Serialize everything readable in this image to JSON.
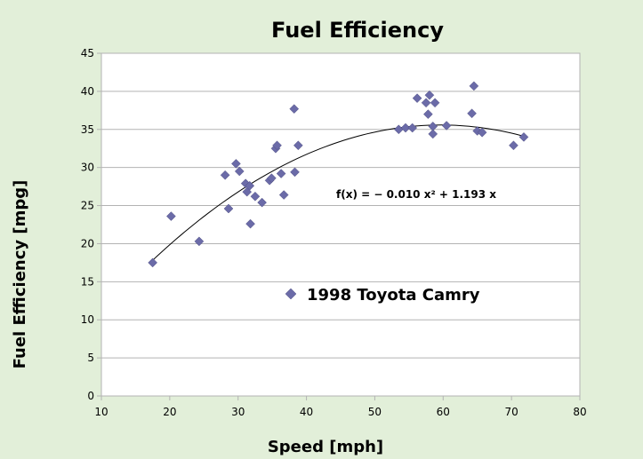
{
  "chart_data": {
    "type": "scatter",
    "title": "Fuel Efficiency",
    "xlabel": "Speed [mph]",
    "ylabel": "Fuel Efficiency [mpg]",
    "xlim": [
      10,
      80
    ],
    "ylim": [
      0,
      45
    ],
    "xticks": [
      "10",
      "20",
      "30",
      "40",
      "50",
      "60",
      "70",
      "80"
    ],
    "yticks": [
      "0",
      "5",
      "10",
      "15",
      "20",
      "25",
      "30",
      "35",
      "40",
      "45"
    ],
    "grid": "horizontal",
    "legend_position": "lower-center",
    "marker_color": "#6b6ba8",
    "series": [
      {
        "name": "1998 Toyota Camry",
        "x": [
          17.5,
          20.2,
          24.3,
          28.1,
          28.6,
          29.7,
          30.2,
          31.1,
          31.3,
          31.7,
          31.8,
          32.5,
          33.5,
          34.6,
          34.9,
          35.5,
          35.7,
          36.3,
          36.7,
          38.2,
          38.3,
          38.8,
          53.5,
          54.5,
          55.5,
          56.2,
          57.5,
          57.8,
          58.0,
          58.5,
          58.5,
          58.8,
          60.5,
          64.2,
          64.5,
          65.0,
          65.7,
          70.3,
          71.8
        ],
        "y": [
          17.5,
          23.6,
          20.3,
          29.0,
          24.6,
          30.5,
          29.5,
          27.9,
          26.8,
          27.6,
          22.6,
          26.2,
          25.4,
          28.3,
          28.6,
          32.5,
          32.9,
          29.2,
          26.4,
          37.7,
          29.4,
          32.9,
          35.0,
          35.2,
          35.2,
          39.1,
          38.5,
          37.0,
          39.5,
          35.4,
          34.4,
          38.5,
          35.5,
          37.1,
          40.7,
          34.8,
          34.6,
          32.9,
          34.0
        ]
      }
    ],
    "trendline": {
      "equation": "f(x) = − 0.010 x² + 1.193 x",
      "a": -0.01,
      "b": 1.193,
      "x_range": [
        17.5,
        72
      ]
    }
  }
}
